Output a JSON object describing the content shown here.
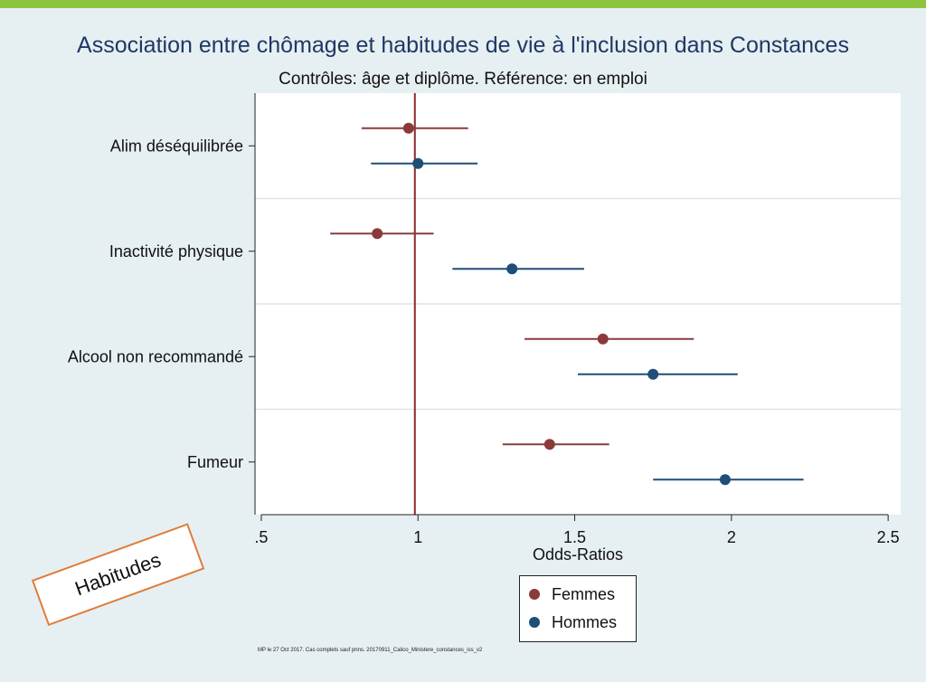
{
  "colors": {
    "femmes": "#8b3a3a",
    "hommes": "#1f4e79",
    "reference_line": "#8b2a2a",
    "accent_bar": "#8cc63f",
    "stamp_border": "#e07b39"
  },
  "chart_data": {
    "type": "scatter",
    "title": "Association entre chômage et habitudes de vie à l'inclusion dans Constances",
    "subtitle": "Contrôles: âge et diplôme. Référence: en emploi",
    "xlabel": "Odds-Ratios",
    "ylabel": "",
    "xlim": [
      0.48,
      2.54
    ],
    "xticks": [
      0.5,
      1,
      1.5,
      2,
      2.5
    ],
    "xtick_labels": [
      ".5",
      "1",
      "1.5",
      "2",
      "2.5"
    ],
    "reference_x": 0.99,
    "categories": [
      "Alim déséquilibrée",
      "Inactivité physique",
      "Alcool non recommandé",
      "Fumeur"
    ],
    "series": [
      {
        "name": "Femmes",
        "color": "#8b3a3a",
        "points": [
          {
            "category": "Alim déséquilibrée",
            "or": 0.97,
            "ci_low": 0.82,
            "ci_high": 1.16
          },
          {
            "category": "Inactivité physique",
            "or": 0.87,
            "ci_low": 0.72,
            "ci_high": 1.05
          },
          {
            "category": "Alcool non recommandé",
            "or": 1.59,
            "ci_low": 1.34,
            "ci_high": 1.88
          },
          {
            "category": "Fumeur",
            "or": 1.42,
            "ci_low": 1.27,
            "ci_high": 1.61
          }
        ]
      },
      {
        "name": "Hommes",
        "color": "#1f4e79",
        "points": [
          {
            "category": "Alim déséquilibrée",
            "or": 1.0,
            "ci_low": 0.85,
            "ci_high": 1.19
          },
          {
            "category": "Inactivité physique",
            "or": 1.3,
            "ci_low": 1.11,
            "ci_high": 1.53
          },
          {
            "category": "Alcool non recommandé",
            "or": 1.75,
            "ci_low": 1.51,
            "ci_high": 2.02
          },
          {
            "category": "Fumeur",
            "or": 1.98,
            "ci_low": 1.75,
            "ci_high": 2.23
          }
        ]
      }
    ],
    "grid": "horizontal",
    "legend_position": "bottom"
  },
  "legend": {
    "femmes": "Femmes",
    "hommes": "Hommes"
  },
  "stamp": {
    "label": "Habitudes"
  },
  "footnote": "MP le 27 Oct 2017. Cas complets  sauf pnns. 20170911_Calico_Ministere_constances_iss_v2"
}
